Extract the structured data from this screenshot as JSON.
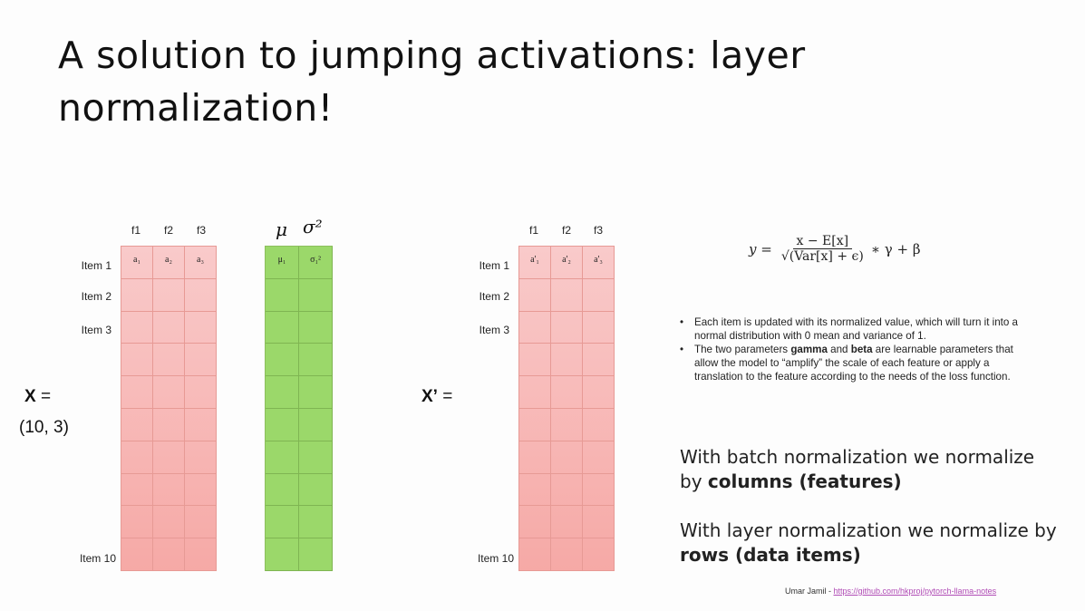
{
  "title": "A solution to jumping activations: layer normalization!",
  "matrix_x": {
    "columns": [
      "f1",
      "f2",
      "f3"
    ],
    "row_labels": [
      "Item 1",
      "Item 2",
      "Item 3",
      "Item 10"
    ],
    "row1": [
      "a₁",
      "a₂",
      "a₃"
    ],
    "label_main": "X",
    "label_eq": "=",
    "shape": "(10, 3)"
  },
  "stats": {
    "mu": "μ",
    "sigma_sq": "σ²",
    "row1": [
      "μ₁",
      "σ₁²"
    ]
  },
  "matrix_xp": {
    "columns": [
      "f1",
      "f2",
      "f3"
    ],
    "row_labels": [
      "Item 1",
      "Item 2",
      "Item 3",
      "Item 10"
    ],
    "row1": [
      "a'₁",
      "a'₂",
      "a'₃"
    ],
    "label_main": "X’",
    "label_eq": "="
  },
  "formula": {
    "lhs": "y =",
    "numerator": "x − E[x]",
    "denominator": "√(Var[x] + ϵ)",
    "rhs": "∗ γ + β"
  },
  "bullets": {
    "b1": "Each item is updated with its normalized value, which will turn it into a normal distribution with 0 mean and variance of 1.",
    "b2_pre": "The two parameters ",
    "b2_gamma": "gamma",
    "b2_and": " and ",
    "b2_beta": "beta",
    "b2_post": " are learnable parameters that allow the model to “amplify” the scale of each feature or apply a translation to the feature according to the needs of the loss function."
  },
  "batch_norm": {
    "pre": "With batch normalization we normalize by ",
    "bold": "columns (features)"
  },
  "layer_norm": {
    "pre": "With layer normalization we normalize by ",
    "bold": "rows (data items)"
  },
  "footer": {
    "author": "Umar Jamil - ",
    "link": "https://github.com/hkproj/pytorch-llama-notes"
  },
  "colors": {
    "pink_light": "#f9caca",
    "pink_dark": "#f6a9a6",
    "green": "#9bd86a",
    "link": "#b04bb5"
  }
}
